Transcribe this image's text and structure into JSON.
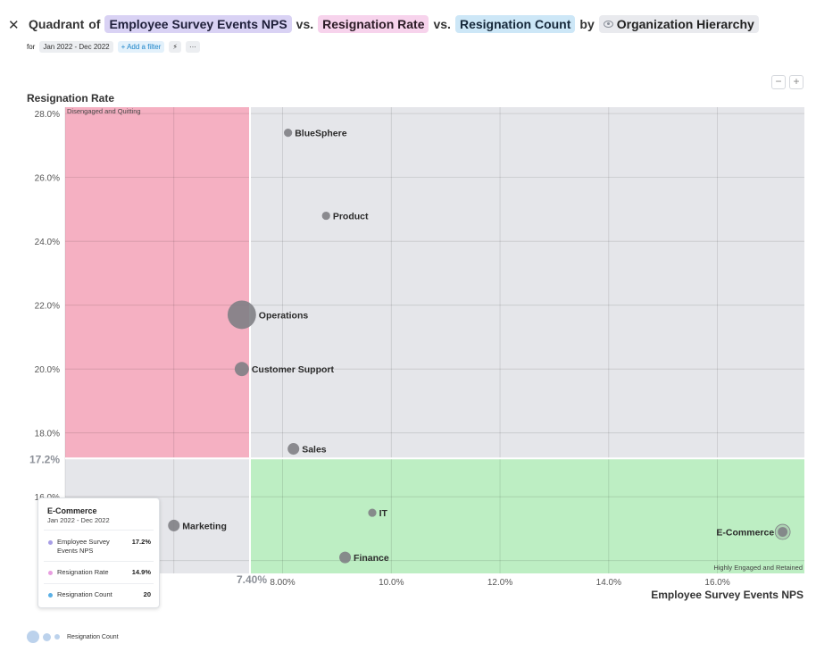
{
  "header": {
    "close_icon": "close-icon",
    "word_quadrant": "Quadrant",
    "word_of": "of",
    "metric_x": "Employee Survey Events NPS",
    "word_vs1": "vs.",
    "metric_y": "Resignation Rate",
    "word_vs2": "vs.",
    "metric_size": "Resignation Count",
    "word_by": "by",
    "dimension": "Organization Hierarchy"
  },
  "filters": {
    "for_label": "for",
    "date_range": "Jan 2022 - Dec 2022",
    "add_filter": "+ Add a filter",
    "bolt_icon": "⚡",
    "more_label": "···"
  },
  "zoom": {
    "minus": "−",
    "plus": "+"
  },
  "tooltip": {
    "title": "E-Commerce",
    "date": "Jan 2022 - Dec 2022",
    "rows": [
      {
        "name": "Employee Survey Events NPS",
        "value": "17.2%",
        "color": "#a89ee6"
      },
      {
        "name": "Resignation Rate",
        "value": "14.9%",
        "color": "#e89ee0"
      },
      {
        "name": "Resignation Count",
        "value": "20",
        "color": "#5ab0e6"
      }
    ]
  },
  "legend": {
    "label": "Resignation Count"
  },
  "chart_data": {
    "type": "scatter",
    "title": "Quadrant of Employee Survey Events NPS vs. Resignation Rate vs. Resignation Count by Organization Hierarchy",
    "xlabel": "Employee Survey Events NPS",
    "ylabel": "Resignation Rate",
    "xlim": [
      4.0,
      17.6
    ],
    "ylim": [
      13.6,
      28.2
    ],
    "x_ticks": [
      8.0,
      10.0,
      12.0,
      14.0,
      16.0
    ],
    "x_tick_labels": [
      "8.00%",
      "10.0%",
      "12.0%",
      "14.0%",
      "16.0%"
    ],
    "y_ticks": [
      16.0,
      18.0,
      20.0,
      22.0,
      24.0,
      26.0,
      28.0
    ],
    "y_tick_labels": [
      "16.0%",
      "18.0%",
      "20.0%",
      "22.0%",
      "24.0%",
      "26.0%",
      "28.0%"
    ],
    "threshold_x": 7.4,
    "threshold_x_label": "7.40%",
    "threshold_y": 17.2,
    "threshold_y_label": "17.2%",
    "quadrant_labels": {
      "top_left": "Disengaged and Quitting",
      "bottom_right": "Highly Engaged and Retained"
    },
    "colors": {
      "top_left": "#f5b0c2",
      "top_right": "#e5e6ea",
      "bottom_left": "#e5e6ea",
      "bottom_right": "#bdeec3",
      "point": "#7f7f85"
    },
    "points": [
      {
        "name": "BlueSphere",
        "x": 8.1,
        "y": 27.4,
        "size": 1
      },
      {
        "name": "Product",
        "x": 8.8,
        "y": 24.8,
        "size": 1
      },
      {
        "name": "Operations",
        "x": 7.25,
        "y": 21.7,
        "size": 12
      },
      {
        "name": "Customer Support",
        "x": 7.25,
        "y": 20.0,
        "size": 3
      },
      {
        "name": "Sales",
        "x": 8.2,
        "y": 17.5,
        "size": 2
      },
      {
        "name": "IT",
        "x": 9.65,
        "y": 15.5,
        "size": 1
      },
      {
        "name": "Marketing",
        "x": 6.0,
        "y": 15.1,
        "size": 2
      },
      {
        "name": "Finance",
        "x": 9.15,
        "y": 14.1,
        "size": 2
      },
      {
        "name": "E-Commerce",
        "x": 17.2,
        "y": 14.9,
        "size": 1.4
      }
    ]
  }
}
